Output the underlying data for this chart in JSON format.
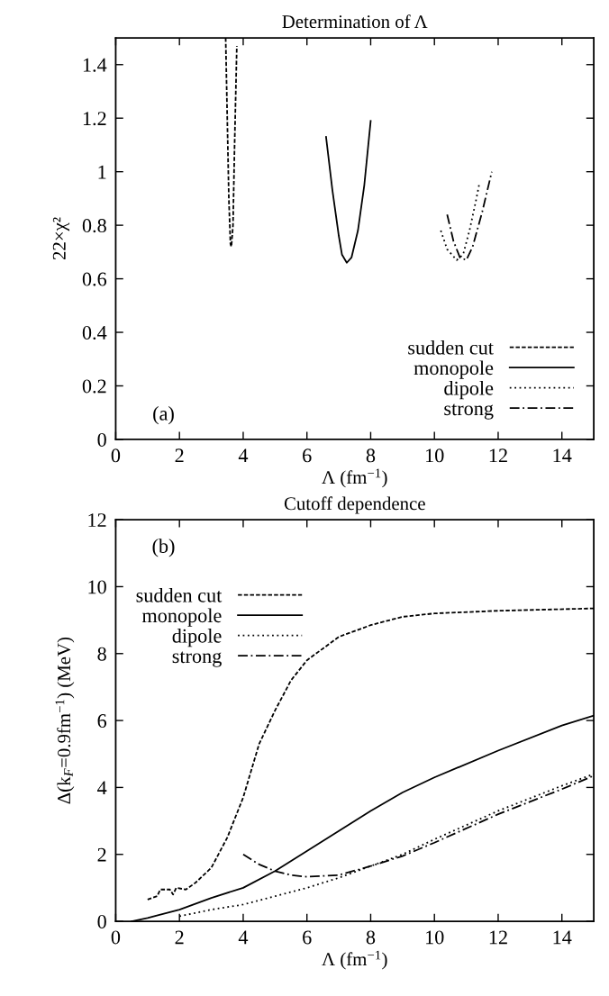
{
  "chart_data": [
    {
      "type": "line",
      "title": "Determination of Λ",
      "xlabel": "Λ (fm$^{−1}$)",
      "ylabel": "22×χ²",
      "xlim": [
        0,
        15
      ],
      "ylim": [
        0,
        1.5
      ],
      "xticks": [
        0,
        2,
        4,
        6,
        8,
        10,
        12,
        14
      ],
      "yticks": [
        0,
        0.2,
        0.4,
        0.6,
        0.8,
        1,
        1.2,
        1.4
      ],
      "grid": false,
      "legend": "bottom right",
      "annotations": [
        "(a)"
      ],
      "series": [
        {
          "name": "sudden cut",
          "color": "#000000",
          "line_style": "dashed",
          "x": [
            3.45,
            3.5,
            3.55,
            3.6,
            3.63,
            3.68,
            3.73,
            3.8
          ],
          "values": [
            1.5,
            1.2,
            0.9,
            0.73,
            0.72,
            0.8,
            1.1,
            1.47
          ]
        },
        {
          "name": "monopole",
          "color": "#000000",
          "line_style": "solid",
          "x": [
            6.6,
            6.8,
            7.0,
            7.1,
            7.25,
            7.4,
            7.6,
            7.8,
            8.0
          ],
          "values": [
            1.13,
            0.93,
            0.76,
            0.69,
            0.66,
            0.68,
            0.78,
            0.95,
            1.19
          ]
        },
        {
          "name": "dipole",
          "color": "#000000",
          "line_style": "dotted",
          "x": [
            10.2,
            10.4,
            10.7,
            10.9,
            11.1,
            11.3,
            11.4
          ],
          "values": [
            0.78,
            0.71,
            0.67,
            0.69,
            0.78,
            0.89,
            0.95
          ]
        },
        {
          "name": "strong",
          "color": "#000000",
          "line_style": "dashdot",
          "x": [
            10.4,
            10.6,
            10.8,
            11.0,
            11.2,
            11.5,
            11.8
          ],
          "values": [
            0.84,
            0.74,
            0.68,
            0.67,
            0.72,
            0.85,
            1.0
          ]
        }
      ]
    },
    {
      "type": "line",
      "title": "Cutoff dependence",
      "xlabel": "Λ (fm$^{−1}$)",
      "ylabel": "Δ(k$_{F}$=0.9fm$^{−1}$) (MeV)",
      "xlim": [
        0,
        15
      ],
      "ylim": [
        0,
        12
      ],
      "xticks": [
        0,
        2,
        4,
        6,
        8,
        10,
        12,
        14
      ],
      "yticks": [
        0,
        2,
        4,
        6,
        8,
        10,
        12
      ],
      "grid": false,
      "legend": "top left",
      "annotations": [
        "(b)"
      ],
      "series": [
        {
          "name": "sudden cut",
          "color": "#000000",
          "line_style": "dashed",
          "x": [
            1,
            1.3,
            1.4,
            1.7,
            1.8,
            1.9,
            2.2,
            2.5,
            3,
            3.5,
            4,
            4.5,
            5,
            5.5,
            6,
            7,
            8,
            9,
            10,
            12,
            15
          ],
          "values": [
            0.65,
            0.75,
            0.95,
            0.95,
            0.8,
            1.0,
            0.95,
            1.15,
            1.6,
            2.5,
            3.7,
            5.3,
            6.3,
            7.2,
            7.8,
            8.5,
            8.85,
            9.1,
            9.2,
            9.28,
            9.35
          ]
        },
        {
          "name": "monopole",
          "color": "#000000",
          "line_style": "solid",
          "x": [
            0.5,
            1,
            2,
            3,
            4,
            5,
            6,
            7,
            8,
            9,
            10,
            12,
            14,
            15
          ],
          "values": [
            0,
            0.1,
            0.35,
            0.7,
            1,
            1.5,
            2.1,
            2.7,
            3.3,
            3.85,
            4.3,
            5.1,
            5.85,
            6.15
          ]
        },
        {
          "name": "dipole",
          "color": "#000000",
          "line_style": "dotted",
          "x": [
            2,
            3,
            4,
            5,
            6,
            7,
            8,
            9,
            10,
            12,
            14,
            15
          ],
          "values": [
            0.15,
            0.35,
            0.5,
            0.75,
            1.0,
            1.3,
            1.65,
            2.0,
            2.45,
            3.3,
            4.05,
            4.4
          ]
        },
        {
          "name": "strong",
          "color": "#000000",
          "line_style": "dashdot",
          "x": [
            4,
            4.5,
            5,
            5.5,
            6,
            7,
            8,
            9,
            10,
            12,
            14,
            15
          ],
          "values": [
            2.0,
            1.7,
            1.5,
            1.38,
            1.33,
            1.38,
            1.65,
            1.95,
            2.35,
            3.2,
            3.95,
            4.35
          ]
        }
      ]
    }
  ]
}
